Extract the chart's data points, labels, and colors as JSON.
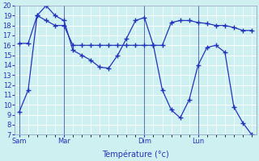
{
  "line1_x": [
    0,
    1,
    2,
    3,
    4,
    5,
    6,
    7,
    8,
    9,
    10,
    11,
    12,
    13,
    14,
    15,
    16,
    17,
    18,
    19,
    20,
    21,
    22,
    23,
    24,
    25,
    26
  ],
  "line1_y": [
    9.3,
    11.5,
    19.0,
    20.0,
    19.0,
    18.5,
    15.5,
    15.0,
    14.5,
    13.8,
    13.7,
    15.0,
    16.7,
    18.5,
    18.8,
    16.0,
    11.5,
    9.5,
    8.7,
    10.5,
    14.0,
    15.8,
    16.0,
    15.3,
    9.8,
    8.2,
    7.0
  ],
  "line2_x": [
    0,
    1,
    2,
    3,
    4,
    5,
    6,
    7,
    8,
    9,
    10,
    11,
    12,
    13,
    14,
    15,
    16,
    17,
    18,
    19,
    20,
    21,
    22,
    23,
    24,
    25,
    26
  ],
  "line2_y": [
    16.2,
    16.2,
    19.0,
    18.5,
    18.0,
    18.0,
    16.0,
    16.0,
    16.0,
    16.0,
    16.0,
    16.0,
    16.0,
    16.0,
    16.0,
    16.0,
    16.0,
    18.3,
    18.5,
    18.5,
    18.3,
    18.2,
    18.0,
    18.0,
    17.8,
    17.5,
    17.5
  ],
  "line_color": "#2233bb",
  "marker": "+",
  "marker_size": 4,
  "marker_lw": 1.0,
  "bg_color": "#cff0f0",
  "grid_color": "#ffffff",
  "axis_color": "#2233bb",
  "xlabel": "Température (°c)",
  "ylim": [
    7,
    20
  ],
  "yticks": [
    7,
    8,
    9,
    10,
    11,
    12,
    13,
    14,
    15,
    16,
    17,
    18,
    19,
    20
  ],
  "day_labels": [
    "Sam",
    "Mar",
    "Dim",
    "Lun"
  ],
  "day_positions": [
    0,
    5,
    14,
    20
  ],
  "vline_x": [
    0,
    5,
    14,
    20
  ],
  "xlim": [
    -0.5,
    26.5
  ],
  "figsize": [
    3.2,
    2.0
  ],
  "dpi": 100,
  "tick_fontsize": 6,
  "xlabel_fontsize": 7,
  "linewidth": 0.9
}
